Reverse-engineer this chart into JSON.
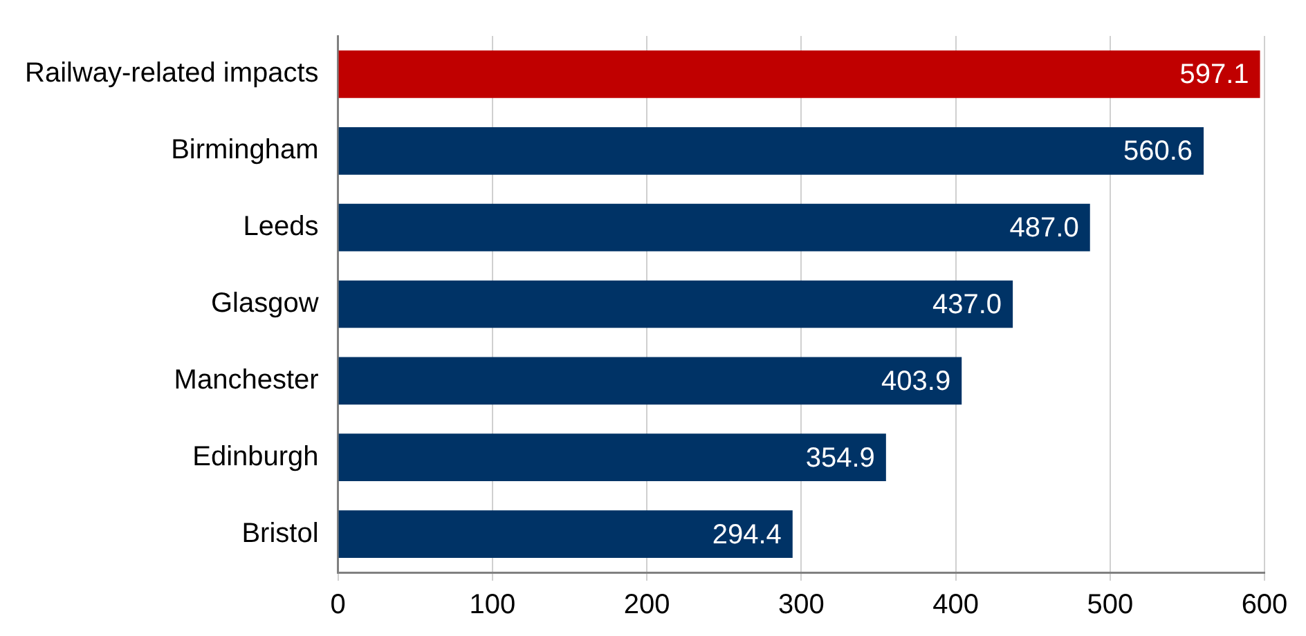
{
  "chart_data": {
    "type": "bar",
    "orientation": "horizontal",
    "categories": [
      "Railway-related impacts",
      "Birmingham",
      "Leeds",
      "Glasgow",
      "Manchester",
      "Edinburgh",
      "Bristol"
    ],
    "values": [
      597.1,
      560.6,
      487.0,
      437.0,
      403.9,
      354.9,
      294.4
    ],
    "value_labels": [
      "597.1",
      "560.6",
      "487.0",
      "437.0",
      "403.9",
      "354.9",
      "294.4"
    ],
    "colors": [
      "#c00000",
      "#003366",
      "#003366",
      "#003366",
      "#003366",
      "#003366",
      "#003366"
    ],
    "xlim": [
      0,
      600
    ],
    "xticks": [
      0,
      100,
      200,
      300,
      400,
      500,
      600
    ],
    "grid": "x",
    "legend": false
  }
}
